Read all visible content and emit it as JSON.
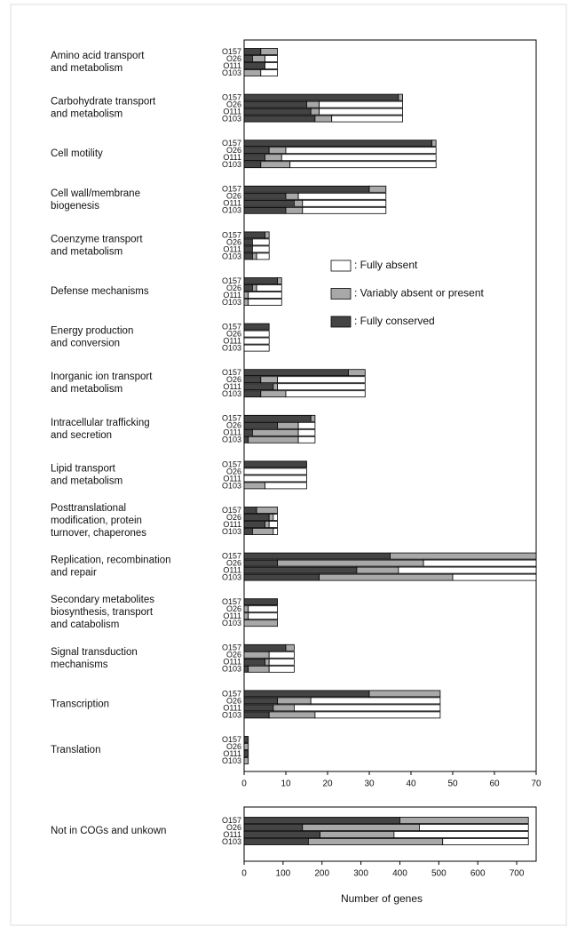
{
  "chart_data": [
    {
      "type": "stacked-bar-horizontal",
      "categories": [
        [
          "Amino acid transport",
          "and metabolism"
        ],
        [
          "Carbohydrate transport",
          "and metabolism"
        ],
        [
          "Cell motility"
        ],
        [
          "Cell wall/membrane",
          "biogenesis"
        ],
        [
          "Coenzyme transport",
          "and metabolism"
        ],
        [
          "Defense mechanisms"
        ],
        [
          "Energy production",
          "and conversion"
        ],
        [
          "Inorganic ion transport",
          "and metabolism"
        ],
        [
          "Intracellular trafficking",
          "and secretion"
        ],
        [
          "Lipid transport",
          "and metabolism"
        ],
        [
          "Posttranslational",
          "modification, protein",
          "turnover, chaperones"
        ],
        [
          "Replication, recombination",
          "and repair"
        ],
        [
          "Secondary metabolites",
          "biosynthesis, transport",
          "and catabolism"
        ],
        [
          "Signal transduction",
          "mechanisms"
        ],
        [
          "Transcription"
        ],
        [
          "Translation"
        ]
      ],
      "strains": [
        "O157",
        "O26",
        "O111",
        "O103"
      ],
      "series": [
        {
          "name": ": Fully conserved",
          "color": "#444444",
          "values": [
            [
              4,
              2,
              5,
              0
            ],
            [
              37,
              15,
              16,
              17
            ],
            [
              45,
              6,
              5,
              4
            ],
            [
              30,
              10,
              12,
              10
            ],
            [
              5,
              2,
              2,
              2
            ],
            [
              8,
              2,
              0,
              0
            ],
            [
              6,
              0,
              0,
              0
            ],
            [
              25,
              4,
              7,
              4
            ],
            [
              16,
              8,
              2,
              1
            ],
            [
              15,
              0,
              0,
              0
            ],
            [
              3,
              6,
              5,
              2
            ],
            [
              35,
              8,
              27,
              18
            ],
            [
              8,
              0,
              0,
              0
            ],
            [
              10,
              0,
              5,
              1
            ],
            [
              30,
              8,
              7,
              6
            ],
            [
              1,
              0,
              1,
              0
            ]
          ]
        },
        {
          "name": ": Variably absent or present",
          "color": "#a8a8a8",
          "values": [
            [
              4,
              3,
              0,
              4
            ],
            [
              1,
              3,
              2,
              4
            ],
            [
              1,
              4,
              4,
              7
            ],
            [
              4,
              3,
              2,
              4
            ],
            [
              1,
              0,
              0,
              1
            ],
            [
              1,
              1,
              1,
              1
            ],
            [
              0,
              0,
              0,
              0
            ],
            [
              4,
              4,
              1,
              6
            ],
            [
              1,
              5,
              11,
              12
            ],
            [
              0,
              0,
              0,
              5
            ],
            [
              5,
              1,
              1,
              5
            ],
            [
              35,
              35,
              10,
              32
            ],
            [
              0,
              1,
              1,
              8
            ],
            [
              2,
              6,
              1,
              5
            ],
            [
              17,
              8,
              5,
              11
            ],
            [
              0,
              1,
              0,
              1
            ]
          ]
        },
        {
          "name": ": Fully absent",
          "color": "#ffffff",
          "values": [
            [
              0,
              3,
              3,
              4
            ],
            [
              0,
              20,
              20,
              17
            ],
            [
              0,
              36,
              37,
              35
            ],
            [
              0,
              21,
              20,
              20
            ],
            [
              0,
              4,
              4,
              3
            ],
            [
              0,
              6,
              8,
              8
            ],
            [
              0,
              6,
              6,
              6
            ],
            [
              0,
              21,
              21,
              19
            ],
            [
              0,
              4,
              4,
              4
            ],
            [
              0,
              15,
              15,
              10
            ],
            [
              0,
              1,
              2,
              1
            ],
            [
              0,
              27,
              33,
              20
            ],
            [
              0,
              7,
              7,
              0
            ],
            [
              0,
              6,
              6,
              6
            ],
            [
              0,
              31,
              35,
              30
            ],
            [
              0,
              0,
              0,
              0
            ]
          ]
        }
      ],
      "xlim": [
        0,
        70
      ],
      "xticks": [
        0,
        10,
        20,
        30,
        40,
        50,
        60,
        70
      ]
    },
    {
      "type": "stacked-bar-horizontal",
      "categories": [
        [
          "Not in COGs and unkown"
        ]
      ],
      "strains": [
        "O157",
        "O26",
        "O111",
        "O103"
      ],
      "series": [
        {
          "name": "Fully conserved",
          "color": "#444444",
          "values": [
            [
              400,
              150,
              195,
              165
            ]
          ]
        },
        {
          "name": "Variably absent or present",
          "color": "#a8a8a8",
          "values": [
            [
              330,
              300,
              190,
              345
            ]
          ]
        },
        {
          "name": "Fully absent",
          "color": "#ffffff",
          "values": [
            [
              0,
              280,
              345,
              220
            ]
          ]
        }
      ],
      "xlim": [
        0,
        750
      ],
      "xticks": [
        0,
        100,
        200,
        300,
        400,
        500,
        600,
        700
      ],
      "x_label": "Number of genes"
    }
  ]
}
